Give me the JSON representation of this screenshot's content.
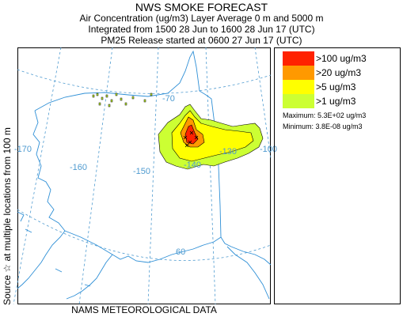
{
  "header": {
    "title": "NWS SMOKE FORECAST",
    "line1": "Air Concentration (ug/m3) Layer Average    0 m and  5000 m",
    "line2": "Integrated from 1500 28 Jun to 1600 28 Jun 17 (UTC)",
    "line3": "PM25 Release started at 0600 27 Jun 17 (UTC)"
  },
  "side_label": "Source ☆   at multiple locations    from    100 m",
  "bottom_label": "NAMS METEOROLOGICAL DATA",
  "map": {
    "grid_labels": [
      "-70",
      "-170",
      "-160",
      "-150",
      "-140",
      "-130",
      "-100",
      "60"
    ],
    "grid_color": "#4f9bd0",
    "coast_color": "#2e8fd6"
  },
  "legend": {
    "items": [
      {
        "label": ">100 ug/m3",
        "color": "#ff2200"
      },
      {
        "label": ">20 ug/m3",
        "color": "#ff9900"
      },
      {
        "label": ">5 ug/m3",
        "color": "#ffff00"
      },
      {
        "label": ">1 ug/m3",
        "color": "#ccff33"
      }
    ],
    "maximum": "Maximum: 5.3E+02 ug/m3",
    "minimum": "Minimum: 3.8E-08 ug/m3"
  }
}
